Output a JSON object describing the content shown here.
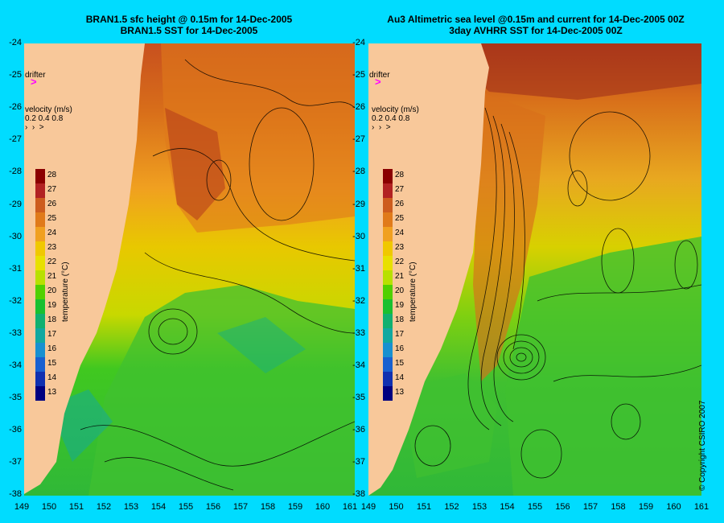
{
  "titles": {
    "left_line1": "BRAN1.5 sfc height @ 0.15m for 14-Dec-2005",
    "left_line2": "BRAN1.5 SST for 14-Dec-2005",
    "right_line1": "Au3 Altimetric sea level  @0.15m and current for 14-Dec-2005 00Z",
    "right_line2": "3day AVHRR SST for 14-Dec-2005 00Z"
  },
  "legend": {
    "drifter_label": "drifter",
    "velocity_title": "velocity (m/s)",
    "velocity_scale": "0.2 0.4 0.8",
    "temperature_title": "temperature (°C)",
    "temperature_ticks": [
      "28",
      "27",
      "26",
      "25",
      "24",
      "23",
      "22",
      "21",
      "20",
      "19",
      "18",
      "17",
      "16",
      "15",
      "14",
      "13"
    ]
  },
  "axes": {
    "lat_ticks": [
      "-24",
      "-25",
      "-26",
      "-27",
      "-28",
      "-29",
      "-30",
      "-31",
      "-32",
      "-33",
      "-34",
      "-35",
      "-36",
      "-37",
      "-38"
    ],
    "lon_ticks_left": [
      "149",
      "150",
      "151",
      "152",
      "153",
      "154",
      "155",
      "156",
      "157",
      "158",
      "159",
      "160",
      "161"
    ],
    "lon_ticks_right": [
      "149",
      "150",
      "151",
      "152",
      "153",
      "154",
      "155",
      "156",
      "157",
      "158",
      "159",
      "160",
      "161"
    ],
    "lon_range": [
      149,
      161
    ],
    "lat_range": [
      -38,
      -24
    ]
  },
  "colors": {
    "background": "#00dcff",
    "land": "#f8c89a",
    "colorscale": [
      "#8b0000",
      "#b22222",
      "#cd5c1e",
      "#e07a1a",
      "#f0a020",
      "#f0c800",
      "#e8e000",
      "#b8e000",
      "#50d000",
      "#18c030",
      "#10b070",
      "#10a8a0",
      "#1890d0",
      "#1860d0",
      "#1030b0",
      "#000080"
    ]
  },
  "copyright": "© Copyright CSIRO 2007"
}
